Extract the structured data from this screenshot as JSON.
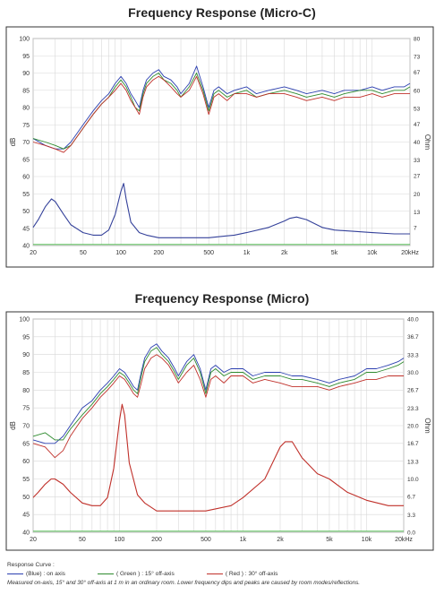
{
  "chart_data": [
    {
      "type": "line",
      "title": "Frequency Response  (Micro-C)",
      "xlabel": "",
      "ylabel": "dB",
      "y2label": "Ohm",
      "xscale": "log",
      "xlim": [
        20,
        20000
      ],
      "ylim": [
        40,
        100
      ],
      "y2lim": [
        0,
        80
      ],
      "x_ticks": [
        20,
        50,
        100,
        200,
        500,
        1000,
        2000,
        5000,
        10000,
        20000
      ],
      "x_tick_labels": [
        "20",
        "50",
        "100",
        "200",
        "500",
        "1k",
        "2k",
        "5k",
        "10k",
        "20kHz"
      ],
      "y_ticks": [
        40,
        45,
        50,
        55,
        60,
        65,
        70,
        75,
        80,
        85,
        90,
        95,
        100
      ],
      "y2_tick_labels": [
        "7",
        "13",
        "20",
        "27",
        "33",
        "40",
        "47",
        "53",
        "60",
        "67",
        "73",
        "80"
      ],
      "grid": true,
      "series": [
        {
          "color": "#2b3fb0",
          "x": [
            20,
            25,
            30,
            35,
            40,
            50,
            60,
            70,
            80,
            90,
            100,
            110,
            120,
            130,
            140,
            150,
            160,
            180,
            200,
            220,
            250,
            280,
            300,
            350,
            400,
            450,
            500,
            550,
            600,
            700,
            800,
            1000,
            1200,
            1500,
            2000,
            2500,
            3000,
            4000,
            5000,
            6000,
            8000,
            10000,
            12000,
            15000,
            18000,
            20000
          ],
          "y": [
            71,
            69,
            68,
            68,
            70,
            75,
            79,
            82,
            84,
            87,
            89,
            87,
            84,
            82,
            80,
            85,
            88,
            90,
            91,
            89,
            88,
            86,
            84,
            87,
            92,
            86,
            80,
            85,
            86,
            84,
            85,
            86,
            84,
            85,
            86,
            85,
            84,
            85,
            84,
            85,
            85,
            86,
            85,
            86,
            86,
            87
          ]
        },
        {
          "color": "#2e8b2e",
          "x": [
            20,
            25,
            30,
            35,
            40,
            50,
            60,
            70,
            80,
            90,
            100,
            110,
            120,
            130,
            140,
            150,
            160,
            180,
            200,
            220,
            250,
            280,
            300,
            350,
            400,
            450,
            500,
            550,
            600,
            700,
            800,
            1000,
            1200,
            1500,
            2000,
            2500,
            3000,
            4000,
            5000,
            6000,
            8000,
            10000,
            12000,
            15000,
            18000,
            20000
          ],
          "y": [
            71,
            70,
            69,
            68,
            69,
            74,
            78,
            81,
            83,
            86,
            88,
            86,
            83,
            80,
            79,
            84,
            87,
            89,
            90,
            88,
            87,
            85,
            83,
            86,
            90,
            85,
            79,
            84,
            85,
            83,
            84,
            85,
            83,
            84,
            85,
            84,
            83,
            84,
            83,
            84,
            85,
            85,
            84,
            85,
            85,
            86
          ]
        },
        {
          "color": "#c0302a",
          "x": [
            20,
            25,
            30,
            35,
            40,
            50,
            60,
            70,
            80,
            90,
            100,
            110,
            120,
            130,
            140,
            150,
            160,
            180,
            200,
            220,
            250,
            280,
            300,
            350,
            400,
            450,
            500,
            550,
            600,
            700,
            800,
            1000,
            1200,
            1500,
            2000,
            2500,
            3000,
            4000,
            5000,
            6000,
            8000,
            10000,
            12000,
            15000,
            18000,
            20000
          ],
          "y": [
            70,
            69,
            68,
            67,
            69,
            74,
            78,
            81,
            83,
            85,
            87,
            85,
            82,
            80,
            78,
            83,
            86,
            88,
            89,
            88,
            86,
            84,
            83,
            85,
            89,
            84,
            78,
            83,
            84,
            82,
            84,
            84,
            83,
            84,
            84,
            83,
            82,
            83,
            82,
            83,
            83,
            84,
            83,
            84,
            84,
            84
          ]
        },
        {
          "color": "#34419a",
          "axis": "right",
          "x": [
            20,
            22,
            25,
            28,
            30,
            35,
            40,
            50,
            60,
            70,
            80,
            90,
            100,
            105,
            110,
            120,
            140,
            160,
            200,
            300,
            500,
            800,
            1000,
            1500,
            2000,
            2200,
            2500,
            3000,
            4000,
            5000,
            7000,
            10000,
            15000,
            20000
          ],
          "y": [
            7,
            10,
            15,
            18,
            17,
            12,
            8,
            5,
            4,
            4,
            6,
            12,
            21,
            24,
            18,
            9,
            5,
            4,
            3,
            3,
            3,
            4,
            5,
            7,
            9.5,
            10.5,
            11,
            10,
            7,
            6,
            5.5,
            5,
            4.5,
            4.5
          ]
        },
        {
          "color": "#44bb44",
          "x": [
            20,
            20000
          ],
          "y": [
            40.3,
            40.3
          ]
        }
      ]
    },
    {
      "type": "line",
      "title": "Frequency Response  (Micro)",
      "xlabel": "",
      "ylabel": "dB",
      "y2label": "Ohm",
      "xscale": "log",
      "xlim": [
        20,
        20000
      ],
      "ylim": [
        40,
        100
      ],
      "y2lim": [
        0,
        40
      ],
      "x_ticks": [
        20,
        50,
        100,
        200,
        500,
        1000,
        2000,
        5000,
        10000,
        20000
      ],
      "x_tick_labels": [
        "20",
        "50",
        "100",
        "200",
        "500",
        "1k",
        "2k",
        "5k",
        "10k",
        "20kHz"
      ],
      "y_ticks": [
        40,
        45,
        50,
        55,
        60,
        65,
        70,
        75,
        80,
        85,
        90,
        95,
        100
      ],
      "y2_tick_labels": [
        "0.0",
        "3.3",
        "6.7",
        "10.0",
        "13.3",
        "16.7",
        "20.0",
        "23.3",
        "26.7",
        "30.0",
        "33.3",
        "36.7",
        "40.0"
      ],
      "grid": true,
      "series": [
        {
          "color": "#2b3fb0",
          "x": [
            20,
            25,
            30,
            35,
            40,
            50,
            60,
            70,
            80,
            90,
            100,
            110,
            120,
            130,
            140,
            150,
            160,
            180,
            200,
            220,
            250,
            280,
            300,
            350,
            400,
            450,
            500,
            550,
            600,
            700,
            800,
            1000,
            1200,
            1500,
            2000,
            2500,
            3000,
            4000,
            5000,
            6000,
            8000,
            10000,
            12000,
            15000,
            18000,
            20000
          ],
          "y": [
            66,
            65,
            65,
            67,
            70,
            75,
            77,
            80,
            82,
            84,
            86,
            85,
            83,
            81,
            80,
            85,
            89,
            92,
            93,
            91,
            89,
            86,
            84,
            88,
            90,
            86,
            80,
            86,
            87,
            85,
            86,
            86,
            84,
            85,
            85,
            84,
            84,
            83,
            82,
            83,
            84,
            86,
            86,
            87,
            88,
            89
          ]
        },
        {
          "color": "#2e8b2e",
          "x": [
            20,
            25,
            30,
            35,
            40,
            50,
            60,
            70,
            80,
            90,
            100,
            110,
            120,
            130,
            140,
            150,
            160,
            180,
            200,
            220,
            250,
            280,
            300,
            350,
            400,
            450,
            500,
            550,
            600,
            700,
            800,
            1000,
            1200,
            1500,
            2000,
            2500,
            3000,
            4000,
            5000,
            6000,
            8000,
            10000,
            12000,
            15000,
            18000,
            20000
          ],
          "y": [
            67,
            68,
            66,
            66,
            69,
            73,
            76,
            79,
            81,
            83,
            85,
            84,
            82,
            80,
            79,
            84,
            88,
            91,
            92,
            90,
            88,
            85,
            83,
            87,
            89,
            85,
            79,
            85,
            86,
            84,
            85,
            85,
            83,
            84,
            84,
            83,
            83,
            82,
            81,
            82,
            83,
            85,
            85,
            86,
            87,
            88
          ]
        },
        {
          "color": "#c0302a",
          "x": [
            20,
            25,
            30,
            35,
            40,
            50,
            60,
            70,
            80,
            90,
            100,
            110,
            120,
            130,
            140,
            150,
            160,
            180,
            200,
            220,
            250,
            280,
            300,
            350,
            400,
            450,
            500,
            550,
            600,
            700,
            800,
            1000,
            1200,
            1500,
            2000,
            2500,
            3000,
            4000,
            5000,
            6000,
            8000,
            10000,
            12000,
            15000,
            18000,
            20000
          ],
          "y": [
            65,
            64,
            61,
            63,
            67,
            72,
            75,
            78,
            80,
            82,
            84,
            83,
            81,
            79,
            78,
            82,
            86,
            89,
            90,
            89,
            87,
            84,
            82,
            85,
            87,
            83,
            78,
            83,
            84,
            82,
            84,
            84,
            82,
            83,
            82,
            81,
            81,
            81,
            80,
            81,
            82,
            83,
            83,
            84,
            84,
            84
          ]
        },
        {
          "color": "#c0302a",
          "axis": "right",
          "x": [
            20,
            22,
            25,
            28,
            30,
            35,
            40,
            50,
            60,
            70,
            80,
            90,
            100,
            105,
            110,
            120,
            140,
            160,
            200,
            300,
            500,
            800,
            1000,
            1500,
            2000,
            2200,
            2500,
            3000,
            4000,
            5000,
            7000,
            10000,
            15000,
            20000
          ],
          "y": [
            6.5,
            7.5,
            9,
            10,
            10,
            9,
            7.5,
            5.5,
            5,
            5,
            6.5,
            12,
            21,
            24,
            22,
            13,
            7,
            5.5,
            4,
            4,
            4,
            5,
            6.5,
            10,
            16,
            17,
            17,
            14,
            11,
            10,
            7.5,
            6,
            5,
            5
          ]
        },
        {
          "color": "#44bb44",
          "x": [
            20,
            20000
          ],
          "y": [
            40.3,
            40.3
          ]
        }
      ]
    }
  ],
  "legend": {
    "heading": "Response Curve :",
    "entries": [
      {
        "label": "(Blue) : on axis",
        "color": "#2b3fb0"
      },
      {
        "label": "( Green ) : 15° off-axis",
        "color": "#2e8b2e"
      },
      {
        "label": "( Red ) : 30° off-axis",
        "color": "#c0302a"
      }
    ],
    "footnote": "Measured on-axis, 15° and 30° off-axis at 1 m in an ordinary room. Lower frequency dips and peaks are caused by room modes/reflections."
  }
}
